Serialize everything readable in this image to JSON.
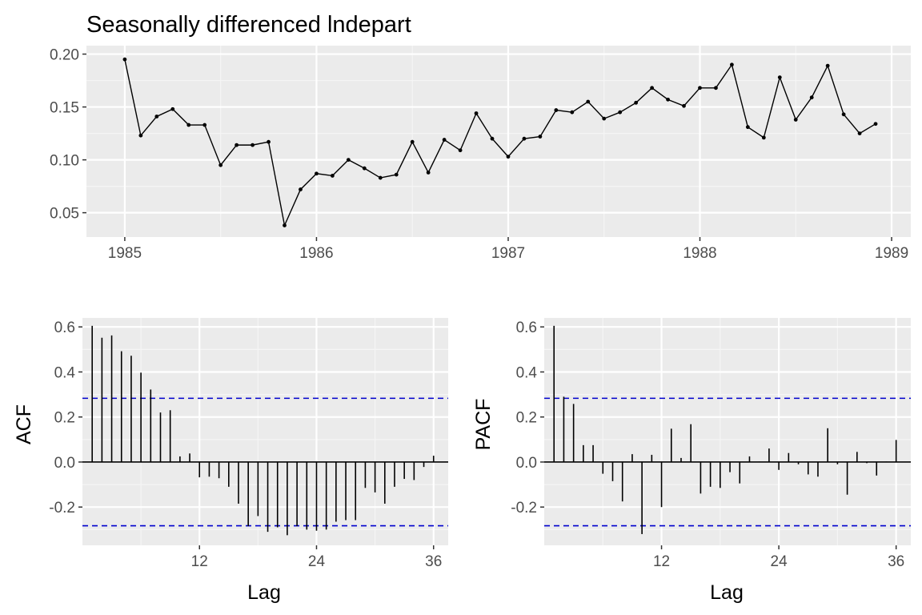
{
  "colors": {
    "panel_background": "#EBEBEB",
    "grid_major": "#FFFFFF",
    "grid_minor": "#F5F5F5",
    "series": "#000000",
    "confidence_band": "#0000CD",
    "tick_text": "#4D4D4D"
  },
  "chart_data": [
    {
      "type": "line",
      "title": "Seasonally differenced lndepart",
      "xlabel": "",
      "ylabel": "",
      "xlim": [
        1984.8,
        1989.1
      ],
      "ylim": [
        0.027,
        0.208
      ],
      "x_ticks": [
        1985,
        1986,
        1987,
        1988,
        1989
      ],
      "y_ticks": [
        0.05,
        0.1,
        0.15,
        0.2
      ],
      "x_tick_labels": [
        "1985",
        "1986",
        "1987",
        "1988",
        "1989"
      ],
      "y_tick_labels": [
        "0.05",
        "0.10",
        "0.15",
        "0.20"
      ],
      "grid": true,
      "points": true,
      "values": [
        0.195,
        0.123,
        0.141,
        0.148,
        0.133,
        0.133,
        0.095,
        0.114,
        0.114,
        0.117,
        0.038,
        0.072,
        0.087,
        0.085,
        0.1,
        0.092,
        0.083,
        0.086,
        0.117,
        0.088,
        0.119,
        0.109,
        0.144,
        0.12,
        0.103,
        0.12,
        0.122,
        0.147,
        0.145,
        0.155,
        0.139,
        0.145,
        0.154,
        0.168,
        0.157,
        0.151,
        0.168,
        0.168,
        0.19,
        0.131,
        0.121,
        0.178,
        0.138,
        0.159,
        0.189,
        0.143,
        0.125,
        0.134
      ],
      "x_start": 1985,
      "x_step": 0.08333
    },
    {
      "type": "bar",
      "title": "",
      "xlabel": "Lag",
      "ylabel": "ACF",
      "xlim": [
        0,
        37.5
      ],
      "ylim": [
        -0.37,
        0.64
      ],
      "x_ticks": [
        12,
        24,
        36
      ],
      "y_ticks": [
        -0.2,
        0,
        0.2,
        0.4,
        0.6
      ],
      "x_tick_labels": [
        "12",
        "24",
        "36"
      ],
      "y_tick_labels": [
        "-0.2",
        "0.0",
        "0.2",
        "0.4",
        "0.6"
      ],
      "grid": true,
      "confidence_limit": 0.283,
      "lags": [
        1,
        2,
        3,
        4,
        5,
        6,
        7,
        8,
        9,
        10,
        11,
        12,
        13,
        14,
        15,
        16,
        17,
        18,
        19,
        20,
        21,
        22,
        23,
        24,
        25,
        26,
        27,
        28,
        29,
        30,
        31,
        32,
        33,
        34,
        35,
        36
      ],
      "values": [
        0.605,
        0.552,
        0.562,
        0.492,
        0.472,
        0.397,
        0.322,
        0.22,
        0.23,
        0.025,
        0.038,
        -0.068,
        -0.065,
        -0.072,
        -0.11,
        -0.185,
        -0.285,
        -0.24,
        -0.31,
        -0.29,
        -0.325,
        -0.285,
        -0.3,
        -0.305,
        -0.3,
        -0.265,
        -0.258,
        -0.258,
        -0.115,
        -0.135,
        -0.185,
        -0.11,
        -0.075,
        -0.08,
        -0.022,
        0.028
      ]
    },
    {
      "type": "bar",
      "title": "",
      "xlabel": "Lag",
      "ylabel": "PACF",
      "xlim": [
        0,
        37.5
      ],
      "ylim": [
        -0.37,
        0.64
      ],
      "x_ticks": [
        12,
        24,
        36
      ],
      "y_ticks": [
        -0.2,
        0,
        0.2,
        0.4,
        0.6
      ],
      "x_tick_labels": [
        "12",
        "24",
        "36"
      ],
      "y_tick_labels": [
        "-0.2",
        "0.0",
        "0.2",
        "0.4",
        "0.6"
      ],
      "grid": true,
      "confidence_limit": 0.283,
      "lags": [
        1,
        2,
        3,
        4,
        5,
        6,
        7,
        8,
        9,
        10,
        11,
        12,
        13,
        14,
        15,
        16,
        17,
        18,
        19,
        20,
        21,
        22,
        23,
        24,
        25,
        26,
        27,
        28,
        29,
        30,
        31,
        32,
        33,
        34,
        35,
        36
      ],
      "values": [
        0.605,
        0.29,
        0.258,
        0.075,
        0.075,
        -0.052,
        -0.085,
        -0.175,
        0.035,
        -0.32,
        0.032,
        -0.2,
        0.148,
        0.018,
        0.168,
        -0.14,
        -0.11,
        -0.115,
        -0.045,
        -0.095,
        0.025,
        0.002,
        0.06,
        -0.035,
        0.04,
        -0.01,
        -0.055,
        -0.065,
        0.15,
        -0.01,
        -0.145,
        0.045,
        -0.005,
        -0.06,
        0.002,
        0.098
      ]
    }
  ]
}
